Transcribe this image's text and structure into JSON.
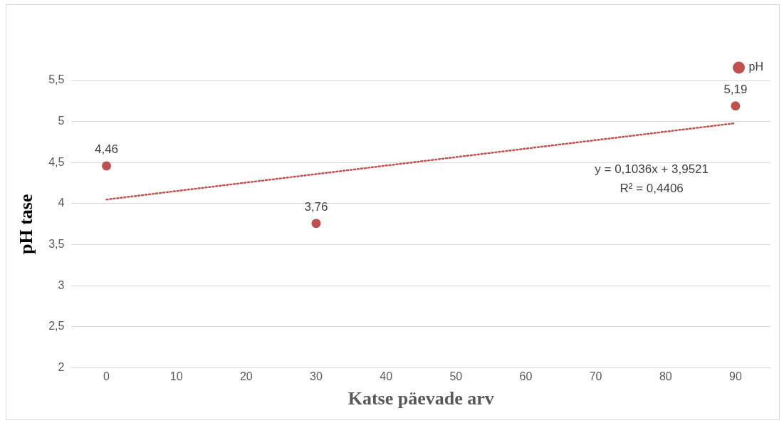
{
  "chart_data": {
    "type": "scatter",
    "xlabel": "Katse päevade arv",
    "ylabel": "pH tase",
    "xlim": [
      -5,
      95
    ],
    "xticks": [
      0,
      10,
      20,
      30,
      40,
      50,
      60,
      70,
      80,
      90
    ],
    "ylim": [
      2,
      5.5
    ],
    "yticks": [
      2,
      {
        "value": 2.5,
        "label": "2,5"
      },
      3,
      {
        "value": 3.5,
        "label": "3,5"
      },
      4,
      {
        "value": 4.5,
        "label": "4,5"
      },
      5,
      {
        "value": 5.5,
        "label": "5,5"
      }
    ],
    "series": [
      {
        "name": "pH",
        "color": "#c0504d",
        "x": [
          0,
          30,
          90
        ],
        "values": [
          4.46,
          3.76,
          5.19
        ],
        "value_labels": [
          "4,46",
          "3,76",
          "5,19"
        ],
        "marker": "circle"
      },
      {
        "type": "line",
        "color": "#c0504d",
        "x": [
          0,
          90
        ],
        "values": [
          4.05,
          4.98
        ],
        "line_style": "dotted",
        "marker": "none"
      }
    ],
    "annotations": [
      "y = 0,1036x + 3,9521",
      "R² = 0,4406"
    ],
    "grid": "y",
    "legend": "top right"
  }
}
